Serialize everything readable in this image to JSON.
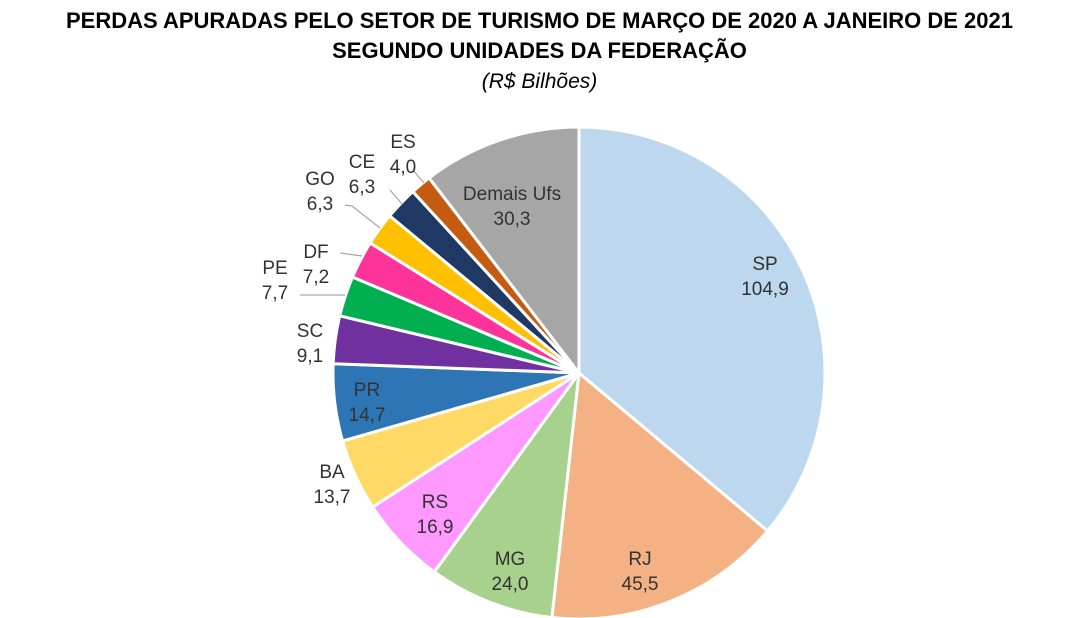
{
  "chart_data": {
    "type": "pie",
    "title_line1": "PERDAS APURADAS PELO SETOR DE TURISMO DE MARÇO DE 2020 A JANEIRO DE 2021",
    "title_line2": "SEGUNDO UNIDADES DA FEDERAÇÃO",
    "subtitle": "(R$ Bilhões)",
    "slices": [
      {
        "name": "SP",
        "value": 104.9,
        "label": "104,9",
        "color": "#BDD7EE",
        "text_color": "#333333"
      },
      {
        "name": "RJ",
        "value": 45.5,
        "label": "45,5",
        "color": "#F4B183",
        "text_color": "#333333"
      },
      {
        "name": "MG",
        "value": 24.0,
        "label": "24,0",
        "color": "#A9D18E",
        "text_color": "#333333"
      },
      {
        "name": "RS",
        "value": 16.9,
        "label": "16,9",
        "color": "#FF99FF",
        "text_color": "#333333"
      },
      {
        "name": "BA",
        "value": 13.7,
        "label": "13,7",
        "color": "#FFD966",
        "text_color": "#333333"
      },
      {
        "name": "PR",
        "value": 14.7,
        "label": "14,7",
        "color": "#2E75B6",
        "text_color": "#333333"
      },
      {
        "name": "SC",
        "value": 9.1,
        "label": "9,1",
        "color": "#7030A0",
        "text_color": "#333333"
      },
      {
        "name": "PE",
        "value": 7.7,
        "label": "7,7",
        "color": "#00B050",
        "text_color": "#333333"
      },
      {
        "name": "DF",
        "value": 7.2,
        "label": "7,2",
        "color": "#FF3399",
        "text_color": "#333333"
      },
      {
        "name": "GO",
        "value": 6.3,
        "label": "6,3",
        "color": "#FFC000",
        "text_color": "#333333"
      },
      {
        "name": "CE",
        "value": 6.3,
        "label": "6,3",
        "color": "#203864",
        "text_color": "#333333"
      },
      {
        "name": "ES",
        "value": 4.0,
        "label": "4,0",
        "color": "#C55A11",
        "text_color": "#333333"
      },
      {
        "name": "Demais Ufs",
        "value": 30.3,
        "label": "30,3",
        "color": "#A6A6A6",
        "text_color": "#333333"
      }
    ]
  }
}
